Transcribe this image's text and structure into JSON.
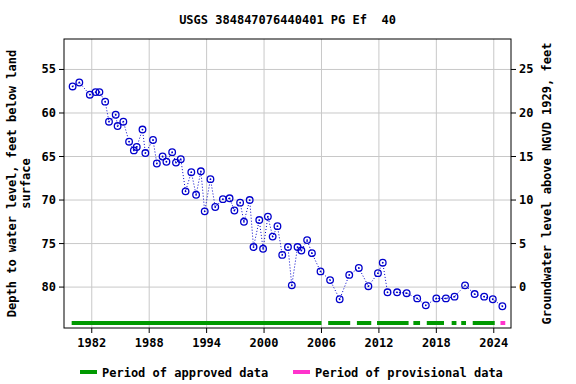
{
  "chart_data": {
    "type": "line",
    "title": "USGS 384847076440401 PG Ef  40",
    "y_label": [
      "Depth to water level, feet below land",
      "surface"
    ],
    "y2_label": "Groundwater level above NGVD 1929, feet",
    "x": [
      1980.0,
      1980.7,
      1981.8,
      1982.4,
      1982.8,
      1983.4,
      1983.8,
      1984.5,
      1984.7,
      1985.3,
      1985.9,
      1986.4,
      1986.7,
      1987.3,
      1987.6,
      1988.4,
      1988.8,
      1989.4,
      1989.8,
      1990.4,
      1990.8,
      1991.3,
      1991.8,
      1992.4,
      1992.9,
      1993.4,
      1993.8,
      1994.4,
      1994.9,
      1995.7,
      1996.4,
      1996.9,
      1997.5,
      1997.9,
      1998.5,
      1998.9,
      1999.5,
      1999.9,
      2000.4,
      2000.9,
      2001.4,
      2001.9,
      2002.5,
      2002.9,
      2003.5,
      2003.9,
      2004.5,
      2005.0,
      2005.9,
      2006.9,
      2007.9,
      2008.9,
      2009.9,
      2010.9,
      2011.9,
      2012.4,
      2012.9,
      2013.9,
      2014.9,
      2016.0,
      2016.9,
      2018.0,
      2019.0,
      2019.9,
      2021.0,
      2022.0,
      2023.0,
      2023.9,
      2024.9
    ],
    "values": [
      56.95,
      56.5,
      57.9,
      57.6,
      57.6,
      58.7,
      61.0,
      60.2,
      61.5,
      61.0,
      63.3,
      64.3,
      63.9,
      61.9,
      64.6,
      63.1,
      65.8,
      65.0,
      65.6,
      64.5,
      65.7,
      65.3,
      69.0,
      66.8,
      69.4,
      66.7,
      71.3,
      67.6,
      70.8,
      69.9,
      69.8,
      71.2,
      70.3,
      72.5,
      70.0,
      75.4,
      72.3,
      75.6,
      71.9,
      74.2,
      73.0,
      76.3,
      75.4,
      79.8,
      75.4,
      75.8,
      74.6,
      76.1,
      78.2,
      79.2,
      81.4,
      78.6,
      77.8,
      79.9,
      78.4,
      77.2,
      80.6,
      80.6,
      80.7,
      81.3,
      82.1,
      81.3,
      81.3,
      81.1,
      79.8,
      80.8,
      81.1,
      81.4,
      82.2
    ],
    "color": "#0000cc",
    "marker": "circle",
    "line_style": "dotted",
    "xlim": [
      1979.1,
      2025.8
    ],
    "xticks": [
      1982,
      1988,
      1994,
      2000,
      2006,
      2012,
      2018,
      2024
    ],
    "ylim": [
      84.7,
      51.5
    ],
    "yticks": [
      55,
      60,
      65,
      70,
      75,
      80
    ],
    "y2lim": [
      -4.7,
      28.5
    ],
    "y2ticks": [
      0,
      5,
      10,
      15,
      20,
      25
    ],
    "grid": true,
    "periods": [
      {
        "name": "Period of approved data",
        "color": "#009900",
        "ranges": [
          [
            1979.9,
            2006.0
          ],
          [
            2006.7,
            2009.0
          ],
          [
            2009.7,
            2011.2
          ],
          [
            2011.8,
            2015.1
          ],
          [
            2015.6,
            2016.3
          ],
          [
            2017.0,
            2018.8
          ],
          [
            2019.6,
            2020.1
          ],
          [
            2020.6,
            2021.1
          ],
          [
            2021.8,
            2024.1
          ]
        ]
      },
      {
        "name": "Period of provisional data",
        "color": "#ff33cc",
        "ranges": [
          [
            2024.7,
            2025.2
          ]
        ]
      }
    ]
  }
}
